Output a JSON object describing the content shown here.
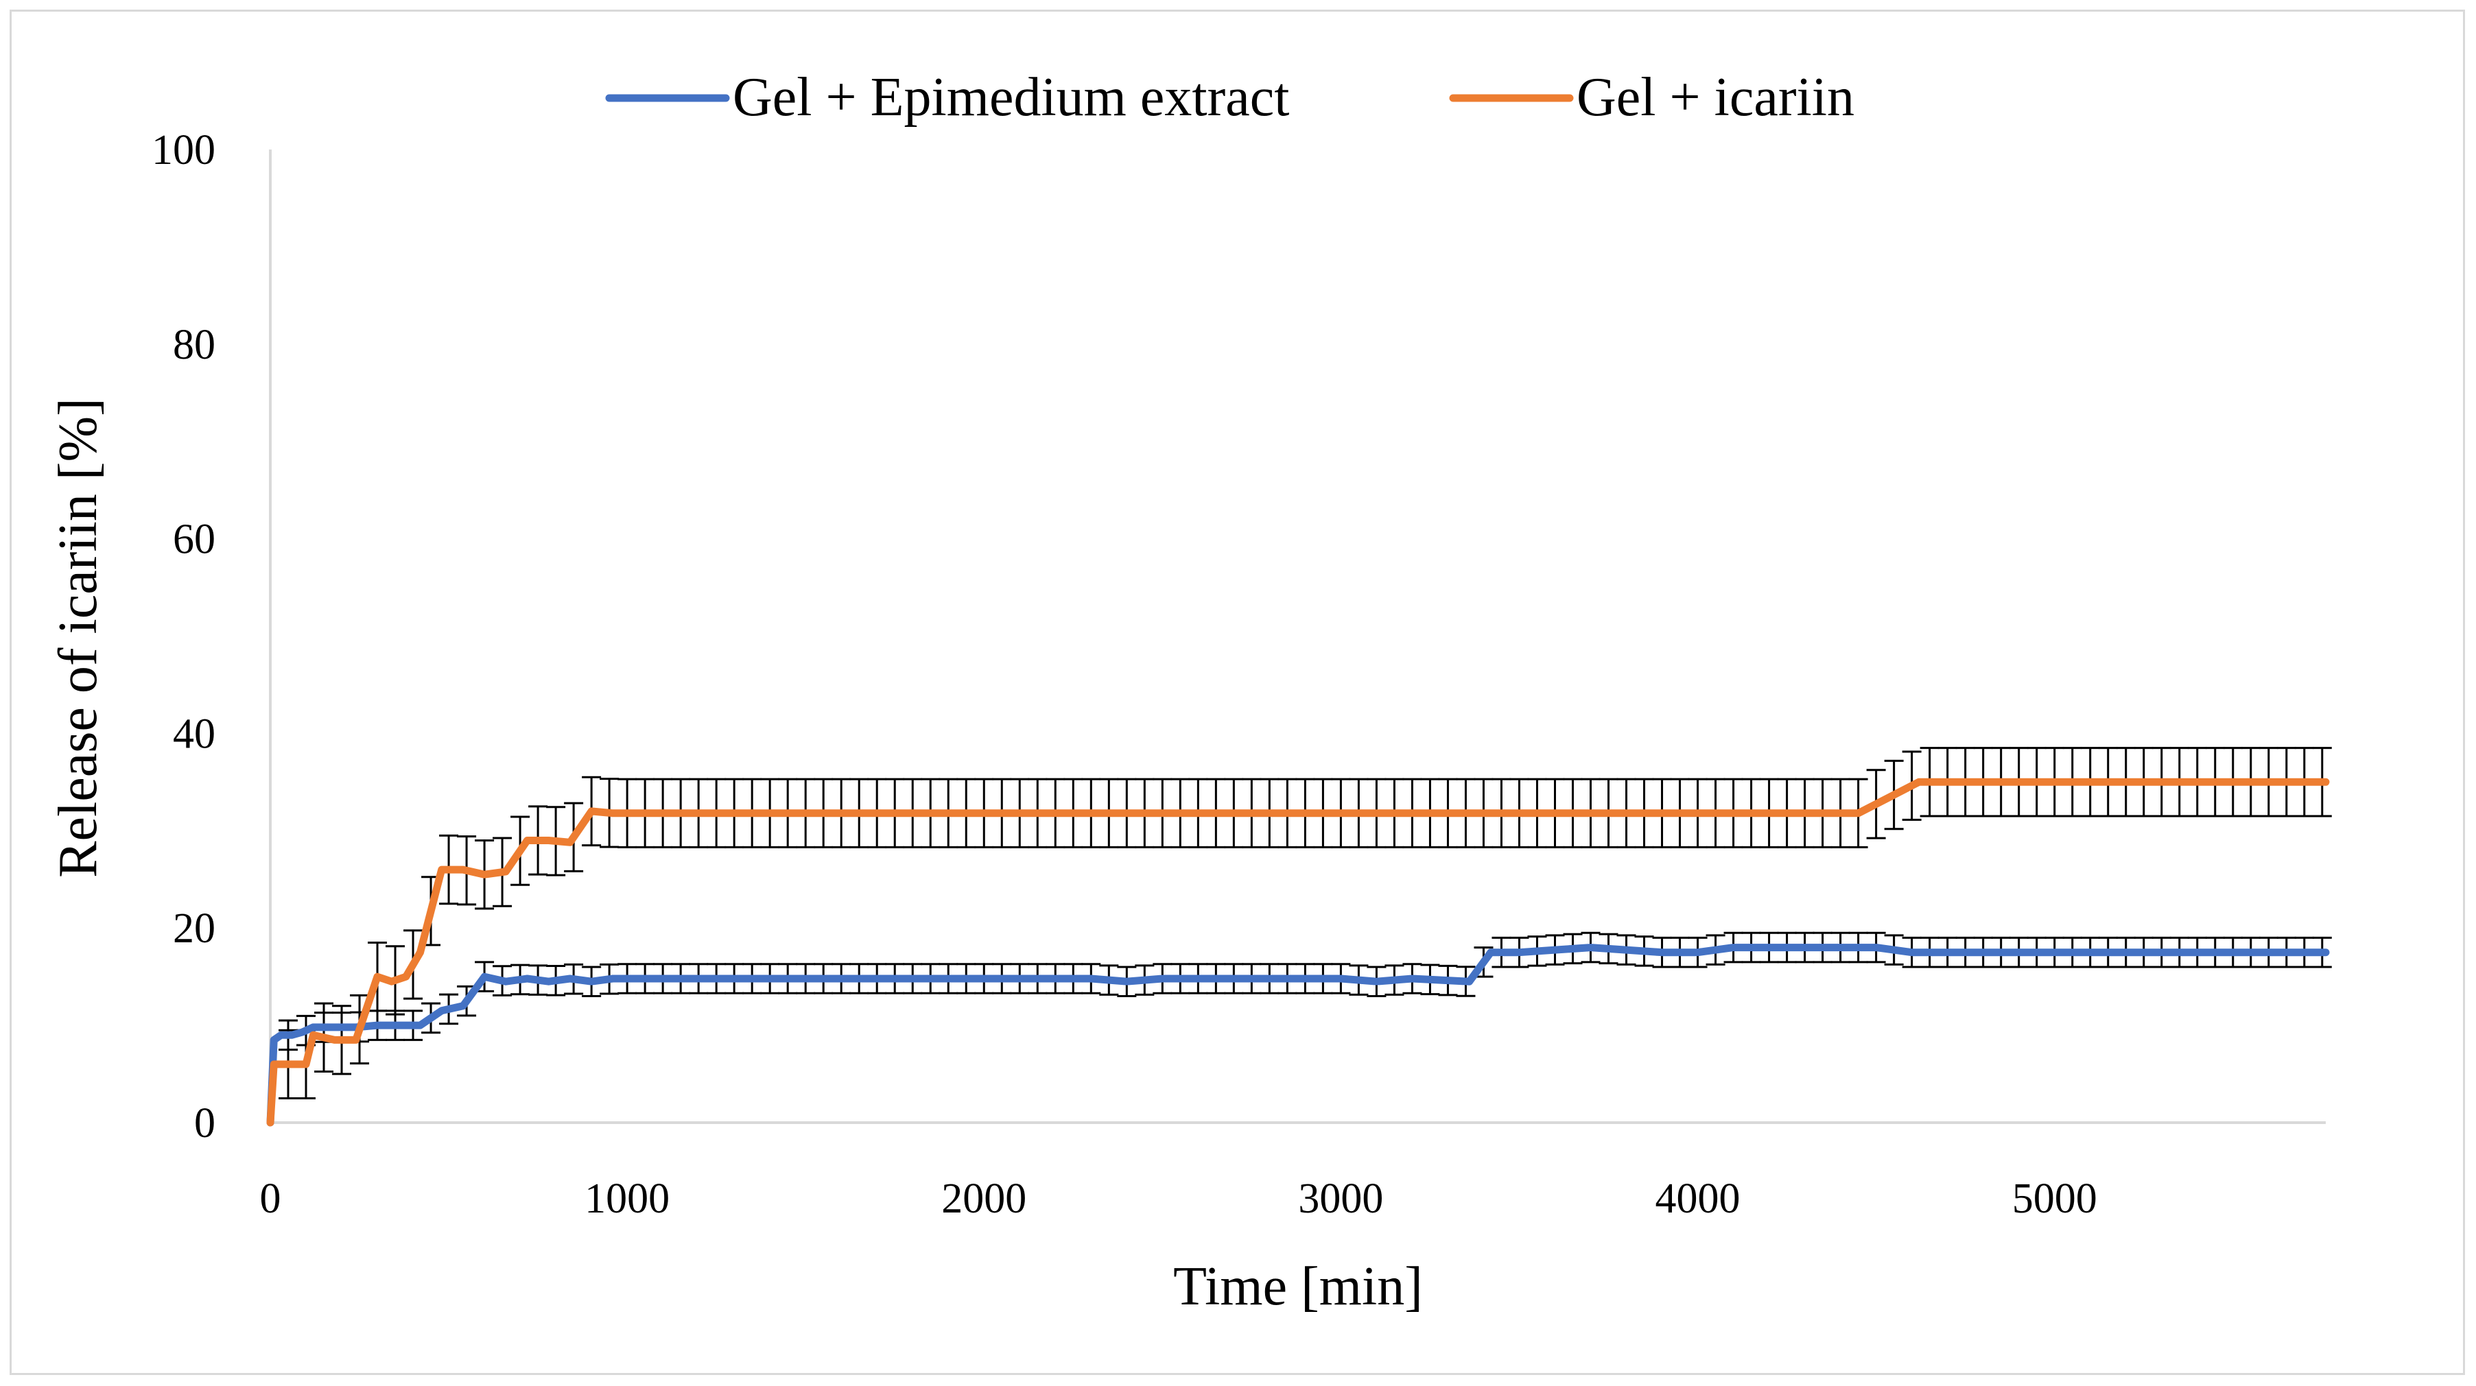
{
  "chart_data": {
    "type": "line",
    "title": "",
    "xlabel": "Time [min]",
    "ylabel": "Release of icariin [%]",
    "xlim": [
      0,
      5760
    ],
    "ylim": [
      0,
      100
    ],
    "xticks": [
      0,
      1000,
      2000,
      3000,
      4000,
      5000
    ],
    "yticks": [
      0,
      20,
      40,
      60,
      80,
      100
    ],
    "grid": false,
    "legend_position": "top-center",
    "series": [
      {
        "name": "Gel + Epimedium extract",
        "color": "#4472c4",
        "points": [
          [
            0,
            0
          ],
          [
            10,
            8.5
          ],
          [
            30,
            9
          ],
          [
            60,
            9
          ],
          [
            90,
            9.3
          ],
          [
            120,
            9.8
          ],
          [
            180,
            9.8
          ],
          [
            240,
            9.8
          ],
          [
            300,
            10
          ],
          [
            360,
            10
          ],
          [
            420,
            10
          ],
          [
            480,
            11.5
          ],
          [
            540,
            12
          ],
          [
            600,
            15
          ],
          [
            660,
            14.5
          ],
          [
            720,
            14.8
          ],
          [
            780,
            14.5
          ],
          [
            840,
            14.8
          ],
          [
            900,
            14.5
          ],
          [
            960,
            14.8
          ],
          [
            1500,
            14.8
          ],
          [
            2000,
            14.8
          ],
          [
            2300,
            14.8
          ],
          [
            2400,
            14.5
          ],
          [
            2500,
            14.8
          ],
          [
            3000,
            14.8
          ],
          [
            3100,
            14.5
          ],
          [
            3200,
            14.8
          ],
          [
            3360,
            14.5
          ],
          [
            3420,
            17.5
          ],
          [
            3500,
            17.5
          ],
          [
            3700,
            18
          ],
          [
            3900,
            17.5
          ],
          [
            4000,
            17.5
          ],
          [
            4100,
            18
          ],
          [
            4500,
            18
          ],
          [
            4600,
            17.5
          ],
          [
            5000,
            17.5
          ],
          [
            5500,
            17.5
          ],
          [
            5760,
            17.5
          ]
        ],
        "error": 1.5,
        "error_step": 50
      },
      {
        "name": "Gel + icariin",
        "color": "#ed7d31",
        "points": [
          [
            0,
            0
          ],
          [
            10,
            6
          ],
          [
            60,
            6
          ],
          [
            100,
            6
          ],
          [
            120,
            9
          ],
          [
            180,
            8.5
          ],
          [
            240,
            8.5
          ],
          [
            300,
            15
          ],
          [
            340,
            14.5
          ],
          [
            380,
            15
          ],
          [
            420,
            17.5
          ],
          [
            480,
            26
          ],
          [
            540,
            26
          ],
          [
            600,
            25.5
          ],
          [
            660,
            25.8
          ],
          [
            720,
            29
          ],
          [
            780,
            29
          ],
          [
            840,
            28.8
          ],
          [
            900,
            32
          ],
          [
            960,
            31.8
          ],
          [
            1500,
            31.8
          ],
          [
            2500,
            31.8
          ],
          [
            3500,
            31.8
          ],
          [
            4450,
            31.8
          ],
          [
            4620,
            35
          ],
          [
            5000,
            35
          ],
          [
            5760,
            35
          ]
        ],
        "error": 3.5,
        "error_step": 50
      }
    ]
  }
}
